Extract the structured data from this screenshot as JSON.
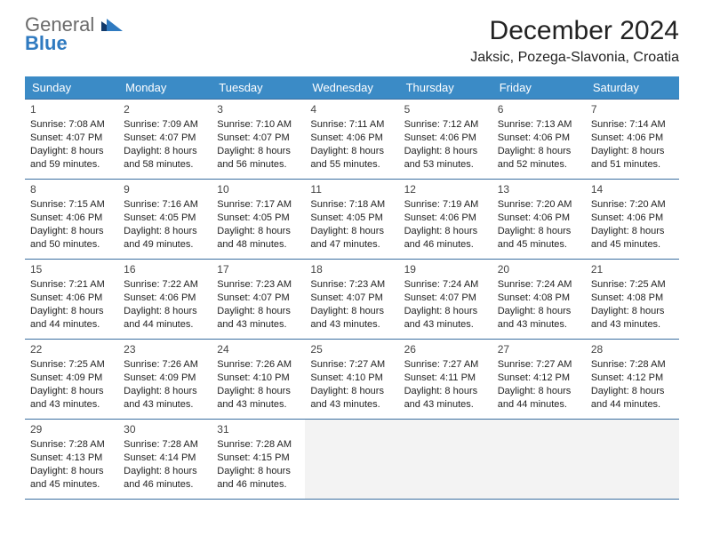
{
  "logo": {
    "line1": "General",
    "line2": "Blue"
  },
  "header": {
    "month_title": "December 2024",
    "location": "Jaksic, Pozega-Slavonia, Croatia"
  },
  "colors": {
    "header_bg": "#3b8bc6",
    "header_text": "#ffffff",
    "cell_border": "#3b6fa0",
    "blank_bg": "#f3f3f3",
    "logo_gray": "#6a6a6a",
    "logo_blue": "#2f7ac0"
  },
  "weekdays": [
    "Sunday",
    "Monday",
    "Tuesday",
    "Wednesday",
    "Thursday",
    "Friday",
    "Saturday"
  ],
  "weeks": [
    [
      {
        "num": "1",
        "sr": "Sunrise: 7:08 AM",
        "ss": "Sunset: 4:07 PM",
        "d1": "Daylight: 8 hours",
        "d2": "and 59 minutes."
      },
      {
        "num": "2",
        "sr": "Sunrise: 7:09 AM",
        "ss": "Sunset: 4:07 PM",
        "d1": "Daylight: 8 hours",
        "d2": "and 58 minutes."
      },
      {
        "num": "3",
        "sr": "Sunrise: 7:10 AM",
        "ss": "Sunset: 4:07 PM",
        "d1": "Daylight: 8 hours",
        "d2": "and 56 minutes."
      },
      {
        "num": "4",
        "sr": "Sunrise: 7:11 AM",
        "ss": "Sunset: 4:06 PM",
        "d1": "Daylight: 8 hours",
        "d2": "and 55 minutes."
      },
      {
        "num": "5",
        "sr": "Sunrise: 7:12 AM",
        "ss": "Sunset: 4:06 PM",
        "d1": "Daylight: 8 hours",
        "d2": "and 53 minutes."
      },
      {
        "num": "6",
        "sr": "Sunrise: 7:13 AM",
        "ss": "Sunset: 4:06 PM",
        "d1": "Daylight: 8 hours",
        "d2": "and 52 minutes."
      },
      {
        "num": "7",
        "sr": "Sunrise: 7:14 AM",
        "ss": "Sunset: 4:06 PM",
        "d1": "Daylight: 8 hours",
        "d2": "and 51 minutes."
      }
    ],
    [
      {
        "num": "8",
        "sr": "Sunrise: 7:15 AM",
        "ss": "Sunset: 4:06 PM",
        "d1": "Daylight: 8 hours",
        "d2": "and 50 minutes."
      },
      {
        "num": "9",
        "sr": "Sunrise: 7:16 AM",
        "ss": "Sunset: 4:05 PM",
        "d1": "Daylight: 8 hours",
        "d2": "and 49 minutes."
      },
      {
        "num": "10",
        "sr": "Sunrise: 7:17 AM",
        "ss": "Sunset: 4:05 PM",
        "d1": "Daylight: 8 hours",
        "d2": "and 48 minutes."
      },
      {
        "num": "11",
        "sr": "Sunrise: 7:18 AM",
        "ss": "Sunset: 4:05 PM",
        "d1": "Daylight: 8 hours",
        "d2": "and 47 minutes."
      },
      {
        "num": "12",
        "sr": "Sunrise: 7:19 AM",
        "ss": "Sunset: 4:06 PM",
        "d1": "Daylight: 8 hours",
        "d2": "and 46 minutes."
      },
      {
        "num": "13",
        "sr": "Sunrise: 7:20 AM",
        "ss": "Sunset: 4:06 PM",
        "d1": "Daylight: 8 hours",
        "d2": "and 45 minutes."
      },
      {
        "num": "14",
        "sr": "Sunrise: 7:20 AM",
        "ss": "Sunset: 4:06 PM",
        "d1": "Daylight: 8 hours",
        "d2": "and 45 minutes."
      }
    ],
    [
      {
        "num": "15",
        "sr": "Sunrise: 7:21 AM",
        "ss": "Sunset: 4:06 PM",
        "d1": "Daylight: 8 hours",
        "d2": "and 44 minutes."
      },
      {
        "num": "16",
        "sr": "Sunrise: 7:22 AM",
        "ss": "Sunset: 4:06 PM",
        "d1": "Daylight: 8 hours",
        "d2": "and 44 minutes."
      },
      {
        "num": "17",
        "sr": "Sunrise: 7:23 AM",
        "ss": "Sunset: 4:07 PM",
        "d1": "Daylight: 8 hours",
        "d2": "and 43 minutes."
      },
      {
        "num": "18",
        "sr": "Sunrise: 7:23 AM",
        "ss": "Sunset: 4:07 PM",
        "d1": "Daylight: 8 hours",
        "d2": "and 43 minutes."
      },
      {
        "num": "19",
        "sr": "Sunrise: 7:24 AM",
        "ss": "Sunset: 4:07 PM",
        "d1": "Daylight: 8 hours",
        "d2": "and 43 minutes."
      },
      {
        "num": "20",
        "sr": "Sunrise: 7:24 AM",
        "ss": "Sunset: 4:08 PM",
        "d1": "Daylight: 8 hours",
        "d2": "and 43 minutes."
      },
      {
        "num": "21",
        "sr": "Sunrise: 7:25 AM",
        "ss": "Sunset: 4:08 PM",
        "d1": "Daylight: 8 hours",
        "d2": "and 43 minutes."
      }
    ],
    [
      {
        "num": "22",
        "sr": "Sunrise: 7:25 AM",
        "ss": "Sunset: 4:09 PM",
        "d1": "Daylight: 8 hours",
        "d2": "and 43 minutes."
      },
      {
        "num": "23",
        "sr": "Sunrise: 7:26 AM",
        "ss": "Sunset: 4:09 PM",
        "d1": "Daylight: 8 hours",
        "d2": "and 43 minutes."
      },
      {
        "num": "24",
        "sr": "Sunrise: 7:26 AM",
        "ss": "Sunset: 4:10 PM",
        "d1": "Daylight: 8 hours",
        "d2": "and 43 minutes."
      },
      {
        "num": "25",
        "sr": "Sunrise: 7:27 AM",
        "ss": "Sunset: 4:10 PM",
        "d1": "Daylight: 8 hours",
        "d2": "and 43 minutes."
      },
      {
        "num": "26",
        "sr": "Sunrise: 7:27 AM",
        "ss": "Sunset: 4:11 PM",
        "d1": "Daylight: 8 hours",
        "d2": "and 43 minutes."
      },
      {
        "num": "27",
        "sr": "Sunrise: 7:27 AM",
        "ss": "Sunset: 4:12 PM",
        "d1": "Daylight: 8 hours",
        "d2": "and 44 minutes."
      },
      {
        "num": "28",
        "sr": "Sunrise: 7:28 AM",
        "ss": "Sunset: 4:12 PM",
        "d1": "Daylight: 8 hours",
        "d2": "and 44 minutes."
      }
    ],
    [
      {
        "num": "29",
        "sr": "Sunrise: 7:28 AM",
        "ss": "Sunset: 4:13 PM",
        "d1": "Daylight: 8 hours",
        "d2": "and 45 minutes."
      },
      {
        "num": "30",
        "sr": "Sunrise: 7:28 AM",
        "ss": "Sunset: 4:14 PM",
        "d1": "Daylight: 8 hours",
        "d2": "and 46 minutes."
      },
      {
        "num": "31",
        "sr": "Sunrise: 7:28 AM",
        "ss": "Sunset: 4:15 PM",
        "d1": "Daylight: 8 hours",
        "d2": "and 46 minutes."
      },
      null,
      null,
      null,
      null
    ]
  ]
}
